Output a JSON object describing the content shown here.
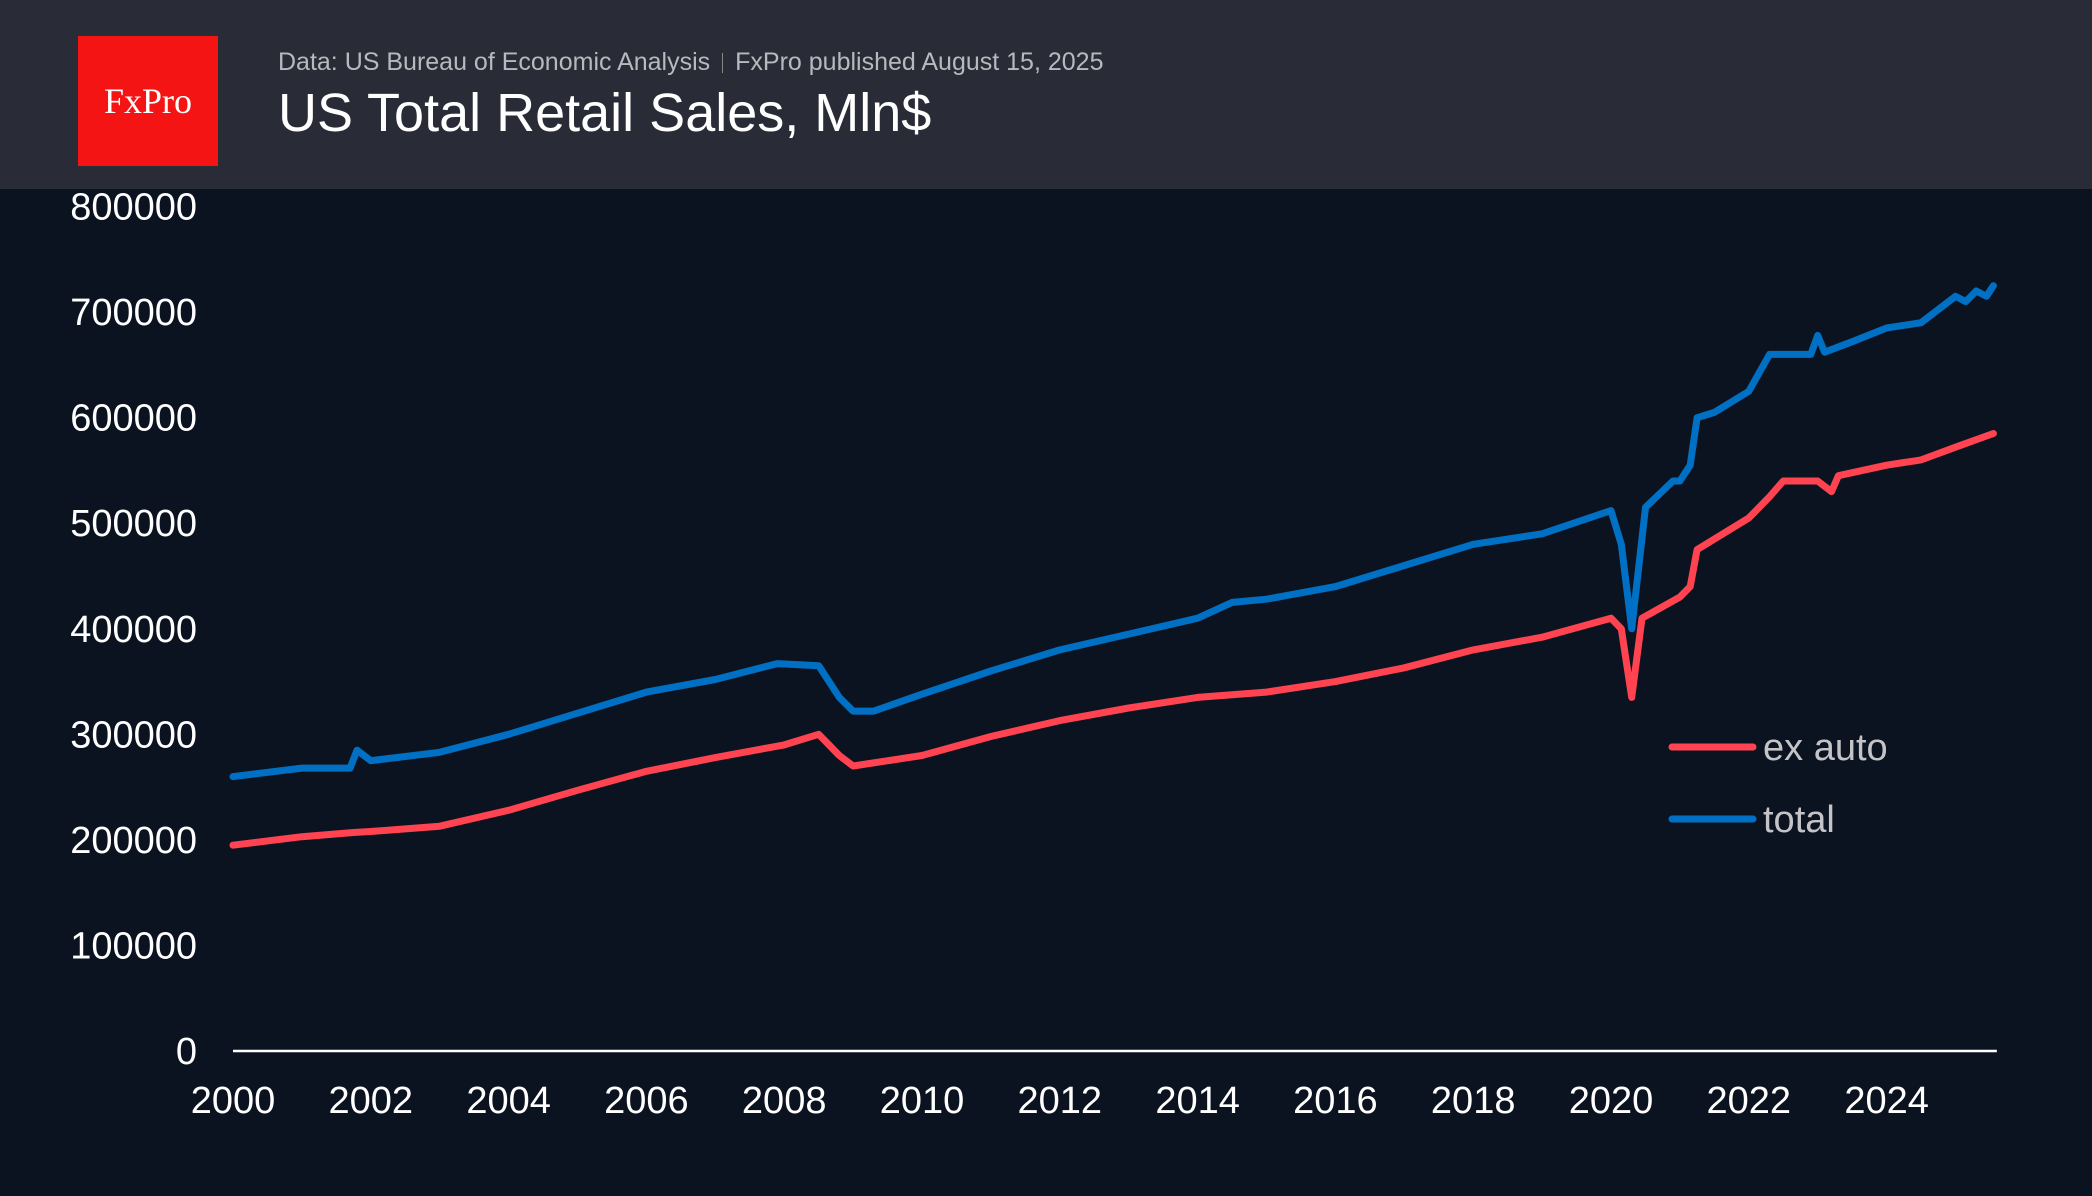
{
  "header": {
    "logo_text": "FxPro",
    "source": "Data: US Bureau of Economic Analysis",
    "published": "FxPro published August 15, 2025",
    "title": "US Total Retail Sales, Mln$"
  },
  "chart_data": {
    "type": "line",
    "title": "US Total Retail Sales, Mln$",
    "xlabel": "",
    "ylabel": "",
    "xlim": [
      2000,
      2025.6
    ],
    "ylim": [
      0,
      800000
    ],
    "x_ticks": [
      "2000",
      "2002",
      "2004",
      "2006",
      "2008",
      "2010",
      "2012",
      "2014",
      "2016",
      "2018",
      "2020",
      "2022",
      "2024"
    ],
    "y_ticks": [
      "0",
      "100000",
      "200000",
      "300000",
      "400000",
      "500000",
      "600000",
      "700000",
      "800000"
    ],
    "grid": false,
    "legend_placement": "right-middle",
    "series": [
      {
        "name": "ex auto",
        "color": "#ff4351",
        "x": [
          2000,
          2001,
          2001.75,
          2002,
          2003,
          2004,
          2005,
          2006,
          2007,
          2008,
          2008.5,
          2008.8,
          2009,
          2010,
          2011,
          2012,
          2013,
          2014,
          2015,
          2016,
          2017,
          2018,
          2019,
          2020,
          2020.15,
          2020.3,
          2020.45,
          2021,
          2021.15,
          2021.25,
          2022,
          2022.3,
          2022.5,
          2023,
          2023.2,
          2023.3,
          2024,
          2024.5,
          2025,
          2025.55
        ],
        "y": [
          195000,
          203000,
          207000,
          208000,
          213000,
          228000,
          247000,
          265000,
          278000,
          290000,
          300000,
          280000,
          270000,
          280000,
          298000,
          313000,
          325000,
          335000,
          340000,
          350000,
          363000,
          380000,
          392000,
          410000,
          400000,
          335000,
          410000,
          430000,
          440000,
          475000,
          505000,
          525000,
          540000,
          540000,
          530000,
          545000,
          555000,
          560000,
          572000,
          585000
        ]
      },
      {
        "name": "total",
        "color": "#0070c4",
        "x": [
          2000,
          2001,
          2001.7,
          2001.8,
          2002,
          2003,
          2004,
          2005,
          2006,
          2007,
          2007.9,
          2008.5,
          2008.8,
          2009,
          2009.3,
          2010,
          2011,
          2012,
          2013,
          2014,
          2014.5,
          2015,
          2016,
          2017,
          2018,
          2019,
          2020,
          2020.15,
          2020.3,
          2020.5,
          2020.9,
          2021,
          2021.15,
          2021.25,
          2021.5,
          2022,
          2022.3,
          2022.9,
          2023,
          2023.1,
          2023.5,
          2024,
          2024.5,
          2025,
          2025.15,
          2025.3,
          2025.45,
          2025.55
        ],
        "y": [
          260000,
          268000,
          268000,
          285000,
          275000,
          283000,
          300000,
          320000,
          340000,
          352000,
          367000,
          365000,
          335000,
          322000,
          322000,
          338000,
          360000,
          380000,
          395000,
          410000,
          425000,
          428000,
          440000,
          460000,
          480000,
          490000,
          512000,
          480000,
          400000,
          515000,
          540000,
          540000,
          555000,
          600000,
          605000,
          625000,
          660000,
          660000,
          678000,
          662000,
          672000,
          685000,
          690000,
          715000,
          710000,
          720000,
          715000,
          725000
        ]
      }
    ]
  }
}
